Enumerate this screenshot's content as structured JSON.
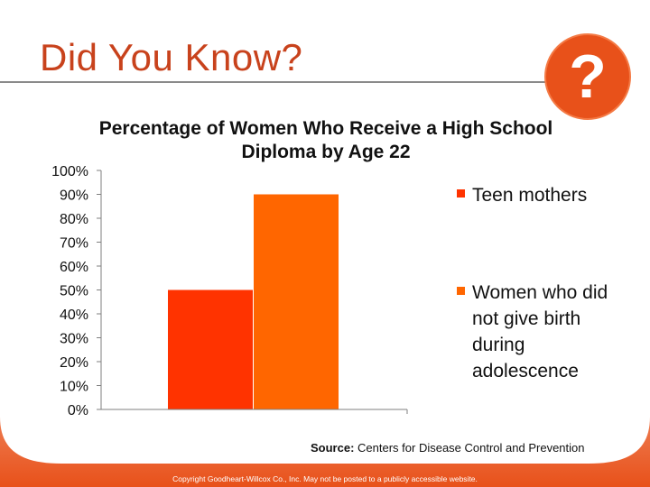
{
  "slide": {
    "title": "Did You Know?",
    "badge_glyph": "?",
    "source_label": "Source:",
    "source_text": "Centers for Disease Control and Prevention",
    "copyright": "Copyright Goodheart-Willcox Co., Inc. May not be posted to a publicly accessible website."
  },
  "colors": {
    "accent": "#e8511a",
    "title": "#c8421c",
    "teen_mothers": "#ff3300",
    "other_women": "#ff6600"
  },
  "chart_data": {
    "type": "bar",
    "title": "Percentage of Women Who Receive a High School Diploma by Age 22",
    "categories": [
      ""
    ],
    "series": [
      {
        "name": "Teen mothers",
        "values": [
          50
        ],
        "color": "#ff3300"
      },
      {
        "name": "Women who did not give birth during adolescence",
        "values": [
          90
        ],
        "color": "#ff6600"
      }
    ],
    "ylim": [
      0,
      100
    ],
    "yticks": [
      "0%",
      "10%",
      "20%",
      "30%",
      "40%",
      "50%",
      "60%",
      "70%",
      "80%",
      "90%",
      "100%"
    ],
    "xlabel": "",
    "ylabel": "",
    "grid": false,
    "legend": "right"
  }
}
